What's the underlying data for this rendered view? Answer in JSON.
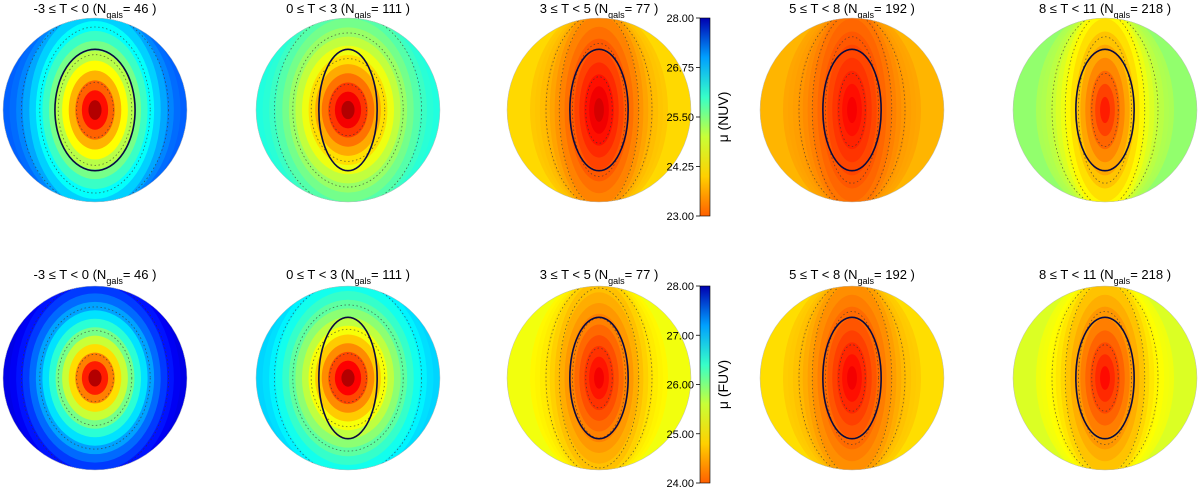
{
  "chart_data": {
    "type": "heatmap",
    "description": "Stacked surface-brightness maps by morphological type",
    "bins": [
      {
        "t_range": "-3 ≤ T < 0",
        "n_gals": 46
      },
      {
        "t_range": "0 ≤ T < 3",
        "n_gals": 111
      },
      {
        "t_range": "3 ≤ T < 5",
        "n_gals": 77
      },
      {
        "t_range": "5 ≤ T < 8",
        "n_gals": 192
      },
      {
        "t_range": "8 ≤ T < 11",
        "n_gals": 218
      }
    ],
    "rows": [
      {
        "band": "NUV",
        "colorbar_label": "μ (NUV)",
        "colorbar_range": [
          23.0,
          28.0
        ],
        "colorbar_ticks": [
          "23.00",
          "24.25",
          "25.50",
          "26.75",
          "28.00"
        ],
        "panels": [
          {
            "center_mu": 23.0,
            "edge_mu": 27.3,
            "spread": 0.28,
            "ellipse": [
              0.33,
              0.66
            ]
          },
          {
            "center_mu": 23.0,
            "edge_mu": 26.2,
            "spread": 0.22,
            "ellipse": [
              0.24,
              0.66
            ]
          },
          {
            "center_mu": 23.2,
            "edge_mu": 24.6,
            "spread": 0.45,
            "ellipse": [
              0.24,
              0.66
            ]
          },
          {
            "center_mu": 23.4,
            "edge_mu": 24.4,
            "spread": 0.55,
            "ellipse": [
              0.24,
              0.66
            ]
          },
          {
            "center_mu": 23.6,
            "edge_mu": 25.4,
            "spread": 0.55,
            "ellipse": [
              0.24,
              0.66
            ]
          }
        ]
      },
      {
        "band": "FUV",
        "colorbar_label": "μ (FUV)",
        "colorbar_range": [
          24.0,
          28.0
        ],
        "colorbar_ticks": [
          "24.00",
          "25.00",
          "26.00",
          "27.00",
          "28.00"
        ],
        "panels": [
          {
            "center_mu": 24.0,
            "edge_mu": 28.0,
            "spread": 0.16,
            "ellipse": null
          },
          {
            "center_mu": 24.0,
            "edge_mu": 26.9,
            "spread": 0.18,
            "ellipse": [
              0.24,
              0.66
            ]
          },
          {
            "center_mu": 24.3,
            "edge_mu": 25.5,
            "spread": 0.35,
            "ellipse": [
              0.24,
              0.66
            ]
          },
          {
            "center_mu": 24.3,
            "edge_mu": 25.3,
            "spread": 0.45,
            "ellipse": [
              0.24,
              0.66
            ]
          },
          {
            "center_mu": 24.4,
            "edge_mu": 25.6,
            "spread": 0.45,
            "ellipse": [
              0.24,
              0.66
            ]
          }
        ]
      }
    ]
  }
}
